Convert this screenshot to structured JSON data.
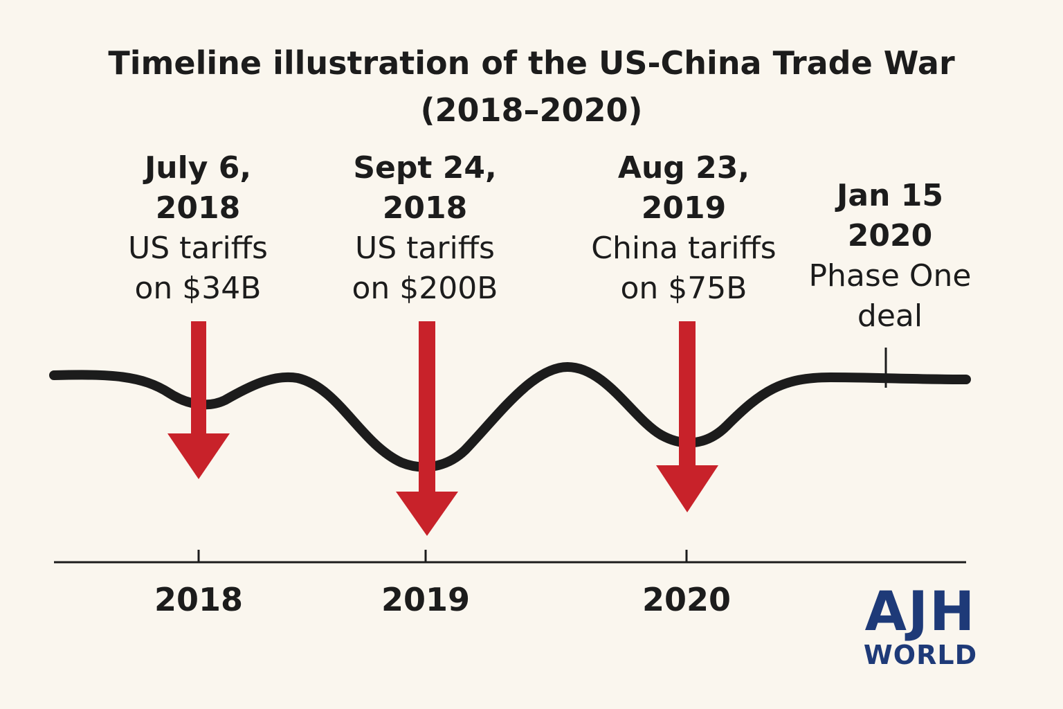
{
  "title": {
    "line1": "Timeline illustration of the US-China Trade War",
    "line2": "(2018–2020)"
  },
  "events": [
    {
      "date_line1": "July 6,",
      "date_line2": "2018",
      "desc_line1": "US tariffs",
      "desc_line2": "on $34B",
      "marker": "red-down-arrow"
    },
    {
      "date_line1": "Sept 24,",
      "date_line2": "2018",
      "desc_line1": "US tariffs",
      "desc_line2": "on $200B",
      "marker": "red-down-arrow"
    },
    {
      "date_line1": "Aug 23,",
      "date_line2": "2019",
      "desc_line1": "China tariffs",
      "desc_line2": "on $75B",
      "marker": "red-down-arrow"
    },
    {
      "date_line1": "Jan 15",
      "date_line2": "2020",
      "desc_line1": "Phase One",
      "desc_line2": "deal",
      "marker": "tick-mark"
    }
  ],
  "axis": {
    "years": [
      "2018",
      "2019",
      "2020"
    ]
  },
  "logo": {
    "line1": "AJH",
    "line2": "WORLD"
  },
  "colors": {
    "background": "#faf6ee",
    "arrow": "#c8222a",
    "line": "#1c1c1c",
    "logo": "#1e3a78"
  }
}
